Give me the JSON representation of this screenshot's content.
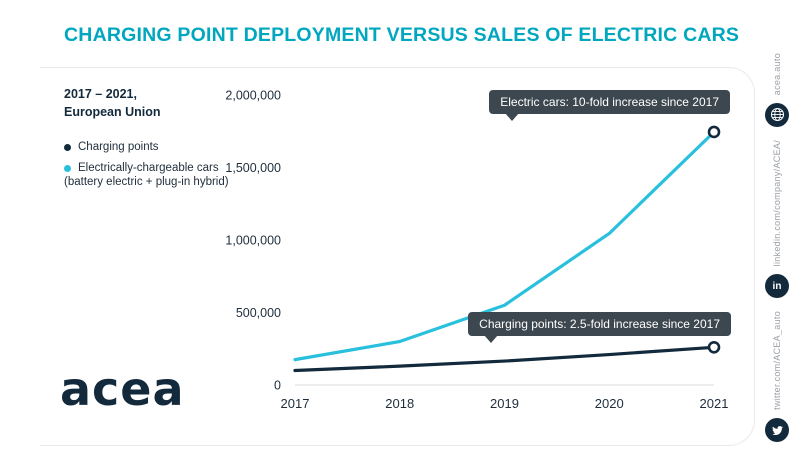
{
  "header": {
    "title": "CHARGING POINT DEPLOYMENT VERSUS SALES OF ELECTRIC CARS"
  },
  "info": {
    "period_line1": "2017 – 2021,",
    "period_line2": "European Union",
    "legend": [
      {
        "label": "Charging points",
        "color": "#13293c"
      },
      {
        "label": "Electrically-chargeable cars",
        "sublabel": "(battery electric + plug-in hybrid)",
        "color": "#29c0dd"
      }
    ]
  },
  "annotations": {
    "electric_cars": "Electric cars: 10-fold increase since 2017",
    "charging_points": "Charging points: 2.5-fold increase since 2017"
  },
  "chart_data": {
    "type": "line",
    "categories": [
      "2017",
      "2018",
      "2019",
      "2020",
      "2021"
    ],
    "series": [
      {
        "name": "Charging points",
        "color": "#13293c",
        "values": [
          100000,
          130000,
          165000,
          210000,
          260000
        ]
      },
      {
        "name": "Electrically-chargeable cars (battery electric + plug-in hybrid)",
        "color": "#29c0dd",
        "values": [
          175000,
          300000,
          550000,
          1045000,
          1745000
        ]
      }
    ],
    "ylim": [
      0,
      2000000
    ],
    "yticks": [
      0,
      500000,
      1000000,
      1500000,
      2000000
    ],
    "grid": false,
    "legend_position": "left",
    "title": "Charging point deployment versus sales of electric cars"
  },
  "logo": {
    "text": "acea"
  },
  "sidebar": {
    "items": [
      {
        "label": "acea.auto",
        "icon": "globe-icon"
      },
      {
        "label": "linkedin.com/company/ACEA/",
        "icon": "linkedin-icon"
      },
      {
        "label": "twitter.com/ACEA_auto",
        "icon": "twitter-icon"
      }
    ]
  },
  "colors": {
    "accent": "#00a7bf",
    "navy": "#13293c",
    "cyan": "#29c0dd",
    "tooltip_bg": "#3d474f"
  }
}
